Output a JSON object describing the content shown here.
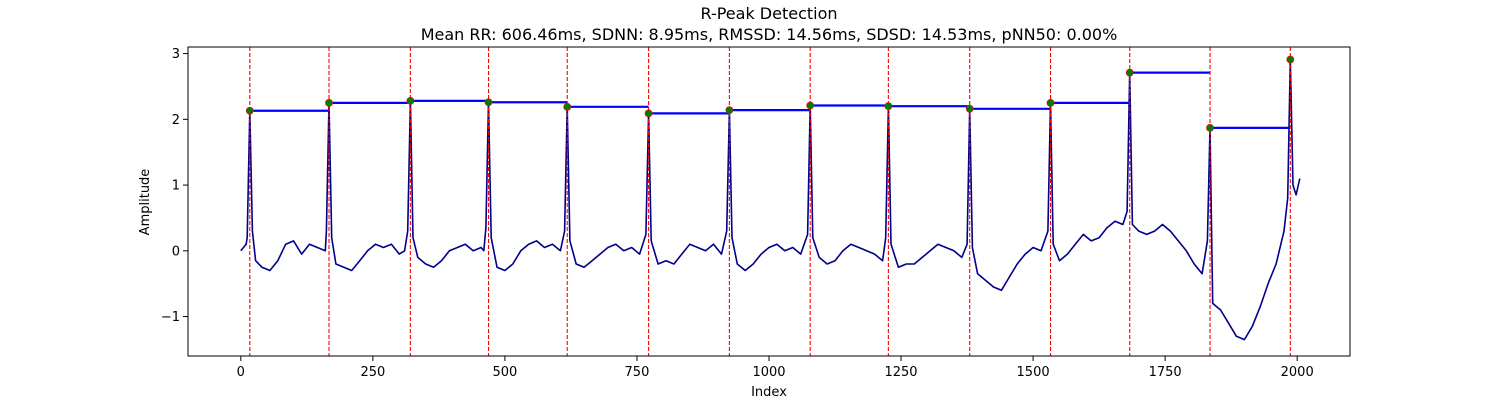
{
  "chart_data": {
    "type": "line",
    "title": "R-Peak Detection",
    "subtitle": "Mean RR: 606.46ms, SDNN: 8.95ms, RMSSD: 14.56ms, SDSD: 14.53ms, pNN50: 0.00%",
    "xlabel": "Index",
    "ylabel": "Amplitude",
    "xlim": [
      -100,
      2100
    ],
    "ylim": [
      -1.6,
      3.1
    ],
    "xticks": [
      0,
      250,
      500,
      750,
      1000,
      1250,
      1500,
      1750,
      2000
    ],
    "yticks": [
      -1,
      0,
      1,
      2,
      3
    ],
    "ytick_labels": [
      "−1",
      "0",
      "1",
      "2",
      "3"
    ],
    "grid": false,
    "colors": {
      "signal": "#00008b",
      "peak_marker": "#008000",
      "peak_line": "#ff0000",
      "rr_segment": "#0000ff"
    },
    "peaks": [
      {
        "x": 17,
        "y": 2.13
      },
      {
        "x": 167,
        "y": 2.25
      },
      {
        "x": 321,
        "y": 2.28
      },
      {
        "x": 469,
        "y": 2.26
      },
      {
        "x": 618,
        "y": 2.19
      },
      {
        "x": 772,
        "y": 2.09
      },
      {
        "x": 925,
        "y": 2.14
      },
      {
        "x": 1078,
        "y": 2.21
      },
      {
        "x": 1226,
        "y": 2.2
      },
      {
        "x": 1380,
        "y": 2.16
      },
      {
        "x": 1533,
        "y": 2.25
      },
      {
        "x": 1683,
        "y": 2.71
      },
      {
        "x": 1835,
        "y": 1.87
      },
      {
        "x": 1987,
        "y": 2.91
      }
    ],
    "signal": {
      "x": [
        0,
        10,
        12,
        17,
        22,
        28,
        40,
        55,
        70,
        85,
        100,
        115,
        130,
        145,
        160,
        162,
        167,
        172,
        180,
        195,
        210,
        225,
        240,
        255,
        270,
        285,
        300,
        310,
        316,
        321,
        326,
        335,
        350,
        365,
        380,
        395,
        410,
        425,
        440,
        455,
        460,
        464,
        469,
        474,
        485,
        500,
        515,
        530,
        545,
        560,
        575,
        590,
        605,
        613,
        618,
        623,
        635,
        650,
        665,
        680,
        695,
        710,
        725,
        740,
        755,
        767,
        772,
        777,
        790,
        805,
        820,
        835,
        850,
        865,
        880,
        895,
        910,
        920,
        925,
        930,
        940,
        955,
        970,
        985,
        1000,
        1015,
        1030,
        1045,
        1060,
        1073,
        1078,
        1083,
        1095,
        1110,
        1125,
        1140,
        1155,
        1170,
        1185,
        1200,
        1215,
        1221,
        1226,
        1231,
        1245,
        1260,
        1275,
        1290,
        1305,
        1320,
        1335,
        1350,
        1365,
        1375,
        1380,
        1385,
        1395,
        1410,
        1425,
        1440,
        1455,
        1470,
        1485,
        1500,
        1515,
        1528,
        1533,
        1538,
        1550,
        1565,
        1580,
        1595,
        1610,
        1625,
        1640,
        1655,
        1670,
        1678,
        1683,
        1688,
        1700,
        1715,
        1730,
        1745,
        1760,
        1775,
        1790,
        1805,
        1820,
        1830,
        1835,
        1840,
        1855,
        1870,
        1885,
        1900,
        1915,
        1930,
        1945,
        1960,
        1975,
        1982,
        1987,
        1992,
        1998,
        2005
      ],
      "y": [
        0.0,
        0.1,
        0.2,
        2.13,
        0.3,
        -0.15,
        -0.25,
        -0.3,
        -0.15,
        0.1,
        0.15,
        -0.05,
        0.1,
        0.05,
        0.0,
        0.3,
        2.25,
        0.2,
        -0.2,
        -0.25,
        -0.3,
        -0.15,
        0.0,
        0.1,
        0.05,
        0.1,
        -0.05,
        0.0,
        0.3,
        2.28,
        0.2,
        -0.1,
        -0.2,
        -0.25,
        -0.15,
        0.0,
        0.05,
        0.1,
        0.0,
        0.05,
        0.0,
        0.35,
        2.26,
        0.2,
        -0.25,
        -0.3,
        -0.2,
        0.0,
        0.1,
        0.15,
        0.05,
        0.1,
        0.0,
        0.3,
        2.19,
        0.15,
        -0.2,
        -0.25,
        -0.15,
        -0.05,
        0.05,
        0.1,
        0.0,
        0.05,
        -0.05,
        0.25,
        2.09,
        0.15,
        -0.2,
        -0.15,
        -0.2,
        -0.05,
        0.1,
        0.05,
        0.0,
        0.1,
        -0.05,
        0.3,
        2.14,
        0.2,
        -0.2,
        -0.3,
        -0.2,
        -0.05,
        0.05,
        0.1,
        0.0,
        0.05,
        -0.05,
        0.25,
        2.21,
        0.2,
        -0.1,
        -0.2,
        -0.15,
        0.0,
        0.1,
        0.05,
        0.0,
        -0.05,
        -0.15,
        0.2,
        2.2,
        0.1,
        -0.25,
        -0.2,
        -0.2,
        -0.1,
        0.0,
        0.1,
        0.05,
        0.0,
        -0.1,
        0.1,
        2.16,
        0.05,
        -0.35,
        -0.45,
        -0.55,
        -0.6,
        -0.4,
        -0.2,
        -0.05,
        0.05,
        0.0,
        0.3,
        2.25,
        0.1,
        -0.15,
        -0.05,
        0.1,
        0.25,
        0.15,
        0.2,
        0.35,
        0.45,
        0.4,
        0.6,
        2.71,
        0.4,
        0.3,
        0.25,
        0.3,
        0.4,
        0.3,
        0.15,
        0.0,
        -0.2,
        -0.35,
        0.15,
        1.87,
        -0.8,
        -0.9,
        -1.1,
        -1.3,
        -1.35,
        -1.15,
        -0.85,
        -0.5,
        -0.2,
        0.3,
        0.8,
        2.91,
        1.0,
        0.85,
        1.1
      ]
    },
    "series": [
      {
        "kind": "signal"
      },
      {
        "kind": "peak_markers"
      },
      {
        "kind": "rr_segments"
      },
      {
        "kind": "peak_vlines"
      }
    ]
  }
}
